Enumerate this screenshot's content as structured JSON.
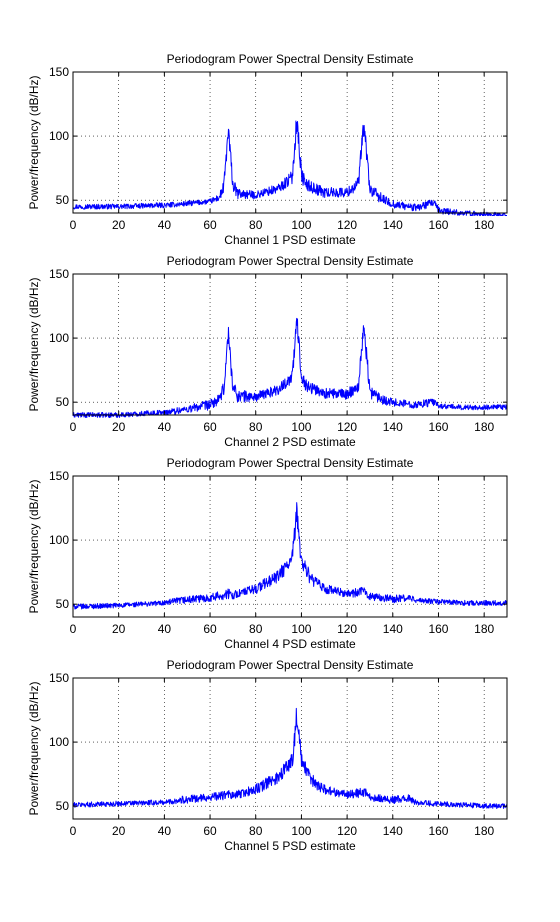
{
  "chart_data": [
    {
      "type": "line",
      "title": "Periodogram Power Spectral Density Estimate",
      "xlabel": "Channel 1 PSD estimate",
      "ylabel": "Power/frequency (dB/Hz)",
      "xlim": [
        0,
        190
      ],
      "ylim": [
        40,
        150
      ],
      "xticks": [
        0,
        20,
        40,
        60,
        80,
        100,
        120,
        140,
        160,
        180
      ],
      "yticks": [
        50,
        100,
        150
      ],
      "grid": true,
      "color": "#0000ff",
      "series": [
        {
          "x": [
            0,
            20,
            38,
            40,
            48,
            60,
            64,
            66,
            68,
            70,
            72,
            80,
            90,
            96,
            98,
            100,
            102,
            110,
            120,
            125,
            127,
            128,
            130,
            136,
            140,
            150,
            158,
            160,
            170,
            180,
            190
          ],
          "y": [
            45,
            45,
            46,
            46,
            47,
            49,
            52,
            60,
            104,
            62,
            55,
            54,
            59,
            68,
            114,
            70,
            62,
            56,
            56,
            63,
            105,
            98,
            58,
            50,
            47,
            44,
            48,
            42,
            40,
            39,
            38
          ],
          "spread": [
            2,
            2,
            2,
            2,
            2,
            2,
            3,
            5,
            8,
            6,
            4,
            3,
            4,
            5,
            9,
            6,
            5,
            4,
            4,
            5,
            8,
            8,
            5,
            4,
            3,
            3,
            3,
            3,
            2,
            2,
            2
          ]
        }
      ]
    },
    {
      "type": "line",
      "title": "Periodogram Power Spectral Density Estimate",
      "xlabel": "Channel 2 PSD estimate",
      "ylabel": "Power/frequency (dB/Hz)",
      "xlim": [
        0,
        190
      ],
      "ylim": [
        40,
        150
      ],
      "xticks": [
        0,
        20,
        40,
        60,
        80,
        100,
        120,
        140,
        160,
        180
      ],
      "yticks": [
        50,
        100,
        150
      ],
      "grid": true,
      "color": "#0000ff",
      "series": [
        {
          "x": [
            0,
            20,
            38,
            40,
            48,
            60,
            64,
            66,
            68,
            70,
            72,
            80,
            90,
            96,
            98,
            100,
            102,
            110,
            120,
            125,
            127,
            128,
            130,
            136,
            140,
            150,
            158,
            160,
            170,
            180,
            190
          ],
          "y": [
            40,
            40,
            42,
            42,
            44,
            48,
            52,
            60,
            104,
            62,
            55,
            54,
            60,
            70,
            114,
            72,
            63,
            57,
            56,
            63,
            105,
            98,
            58,
            52,
            50,
            48,
            50,
            47,
            46,
            46,
            46
          ],
          "spread": [
            2,
            2,
            2,
            2,
            3,
            4,
            4,
            6,
            8,
            6,
            5,
            4,
            4,
            5,
            9,
            6,
            5,
            4,
            4,
            5,
            8,
            8,
            5,
            4,
            3,
            3,
            3,
            2,
            2,
            2,
            2
          ]
        }
      ]
    },
    {
      "type": "line",
      "title": "Periodogram Power Spectral Density Estimate",
      "xlabel": "Channel 4 PSD estimate",
      "ylabel": "Power/frequency (dB/Hz)",
      "xlim": [
        0,
        190
      ],
      "ylim": [
        40,
        150
      ],
      "xticks": [
        0,
        20,
        40,
        60,
        80,
        100,
        120,
        140,
        160,
        180
      ],
      "yticks": [
        50,
        100,
        150
      ],
      "grid": true,
      "color": "#0000ff",
      "series": [
        {
          "x": [
            0,
            20,
            40,
            48,
            60,
            68,
            70,
            80,
            90,
            96,
            98,
            100,
            104,
            110,
            120,
            128,
            130,
            140,
            147,
            150,
            160,
            170,
            180,
            190
          ],
          "y": [
            48,
            49,
            51,
            53,
            55,
            58,
            57,
            62,
            72,
            85,
            122,
            84,
            70,
            62,
            58,
            60,
            56,
            54,
            55,
            53,
            52,
            51,
            51,
            51
          ],
          "spread": [
            2,
            2,
            2,
            3,
            3,
            4,
            3,
            4,
            5,
            7,
            10,
            7,
            5,
            4,
            3,
            4,
            3,
            3,
            3,
            2,
            2,
            2,
            2,
            2
          ]
        }
      ]
    },
    {
      "type": "line",
      "title": "Periodogram Power Spectral Density Estimate",
      "xlabel": "Channel 5 PSD estimate",
      "ylabel": "Power/frequency (dB/Hz)",
      "xlim": [
        0,
        190
      ],
      "ylim": [
        40,
        150
      ],
      "xticks": [
        0,
        20,
        40,
        60,
        80,
        100,
        120,
        140,
        160,
        180
      ],
      "yticks": [
        50,
        100,
        150
      ],
      "grid": true,
      "color": "#0000ff",
      "series": [
        {
          "x": [
            0,
            20,
            40,
            48,
            60,
            68,
            70,
            80,
            90,
            96,
            98,
            100,
            104,
            110,
            120,
            128,
            130,
            140,
            147,
            150,
            160,
            170,
            180,
            190
          ],
          "y": [
            51,
            52,
            53,
            55,
            57,
            59,
            58,
            63,
            73,
            86,
            122,
            85,
            71,
            63,
            59,
            61,
            57,
            55,
            56,
            53,
            52,
            51,
            50,
            50
          ],
          "spread": [
            2,
            2,
            2,
            3,
            3,
            4,
            3,
            4,
            5,
            7,
            10,
            7,
            5,
            4,
            3,
            4,
            3,
            3,
            3,
            2,
            2,
            2,
            2,
            2
          ]
        }
      ]
    }
  ]
}
